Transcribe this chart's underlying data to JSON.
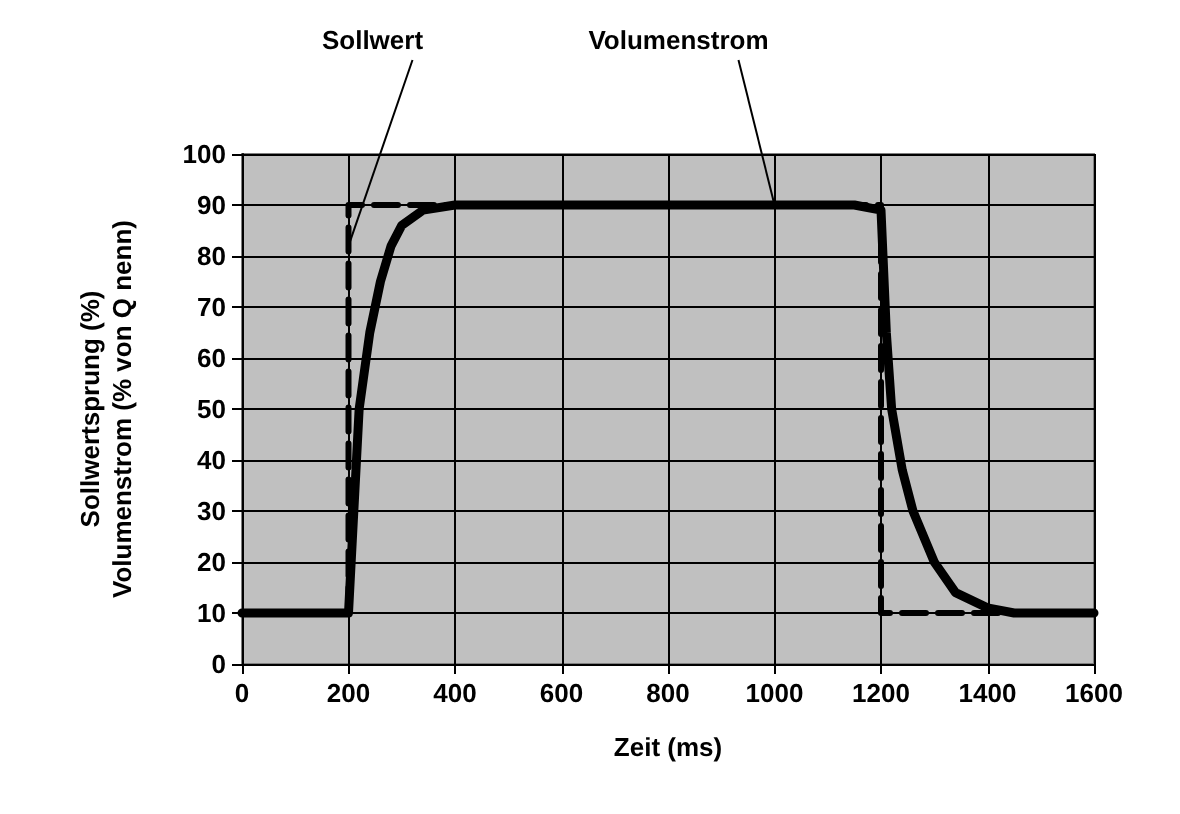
{
  "chart_data": {
    "type": "line",
    "xlabel": "Zeit (ms)",
    "ylabel": "Sollwertsprung (%)\nVolumenstrom (% von Q nenn)",
    "xlim": [
      0,
      1600
    ],
    "xticks": [
      0,
      200,
      400,
      600,
      800,
      1000,
      1200,
      1400,
      1600
    ],
    "ylim": [
      0,
      100
    ],
    "yticks": [
      0,
      10,
      20,
      30,
      40,
      50,
      60,
      70,
      80,
      90,
      100
    ],
    "grid": true,
    "legend": false,
    "marker": "none",
    "series": [
      {
        "name": "Sollwert",
        "color": "#000000",
        "line_style": "dashed",
        "x": [
          0,
          200,
          200,
          1200,
          1200,
          1600
        ],
        "values": [
          10,
          10,
          90,
          90,
          10,
          10
        ]
      },
      {
        "name": "Volumenstrom",
        "color": "#000000",
        "line_style": "solid",
        "x": [
          0,
          200,
          210,
          220,
          240,
          260,
          280,
          300,
          340,
          400,
          1000,
          1150,
          1200,
          1210,
          1220,
          1240,
          1260,
          1300,
          1340,
          1400,
          1450,
          1600
        ],
        "values": [
          10,
          10,
          30,
          50,
          65,
          75,
          82,
          86,
          89,
          90,
          90,
          90,
          89,
          65,
          50,
          38,
          30,
          20,
          14,
          11,
          10,
          10
        ]
      }
    ]
  }
}
